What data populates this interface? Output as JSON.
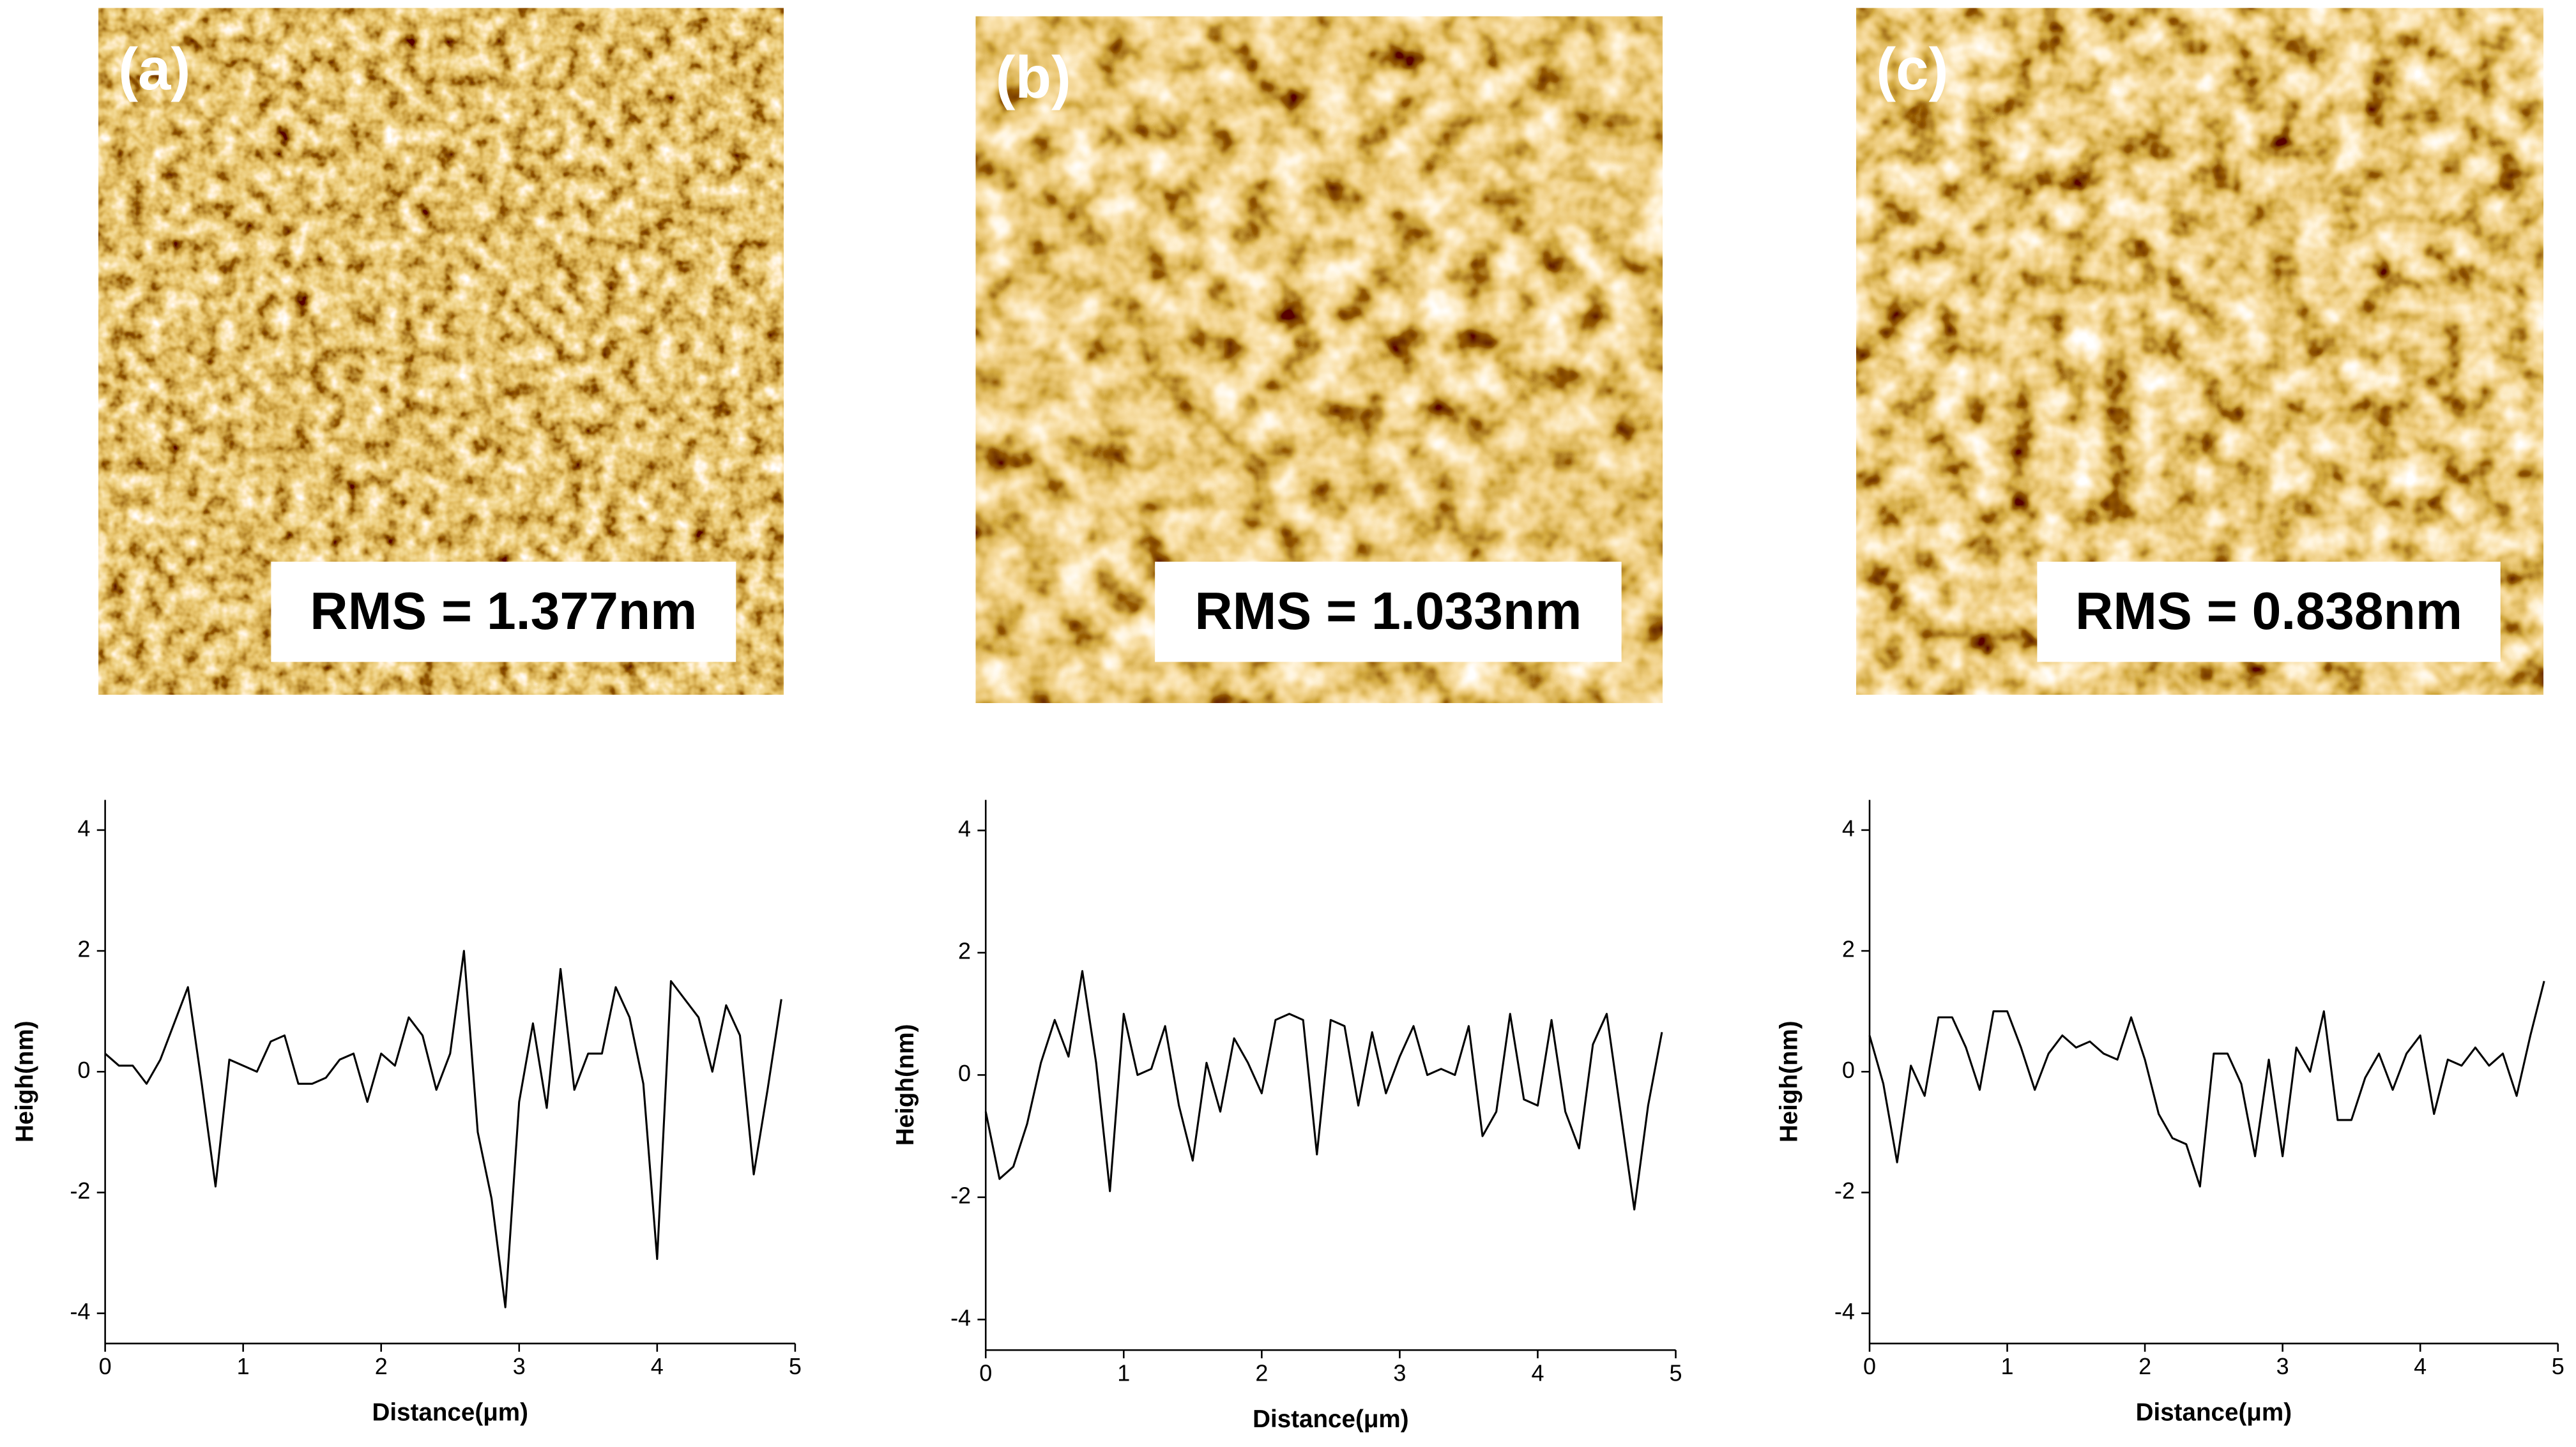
{
  "chart_data": [
    {
      "type": "line",
      "panel_label": "(a)",
      "annotation": "RMS = 1.377nm",
      "x_label": "Distance(μm)",
      "y_label": "Heigh(nm)",
      "color": "#000000",
      "xlim": [
        0,
        5
      ],
      "xticks": [
        0,
        1,
        2,
        3,
        4,
        5
      ],
      "ylim": [
        -4.5,
        4.5
      ],
      "yticks": [
        -4,
        -2,
        0,
        2,
        4
      ],
      "x": [
        0,
        0.1,
        0.2,
        0.3,
        0.4,
        0.5,
        0.6,
        0.7,
        0.8,
        0.9,
        1.0,
        1.1,
        1.2,
        1.3,
        1.4,
        1.5,
        1.6,
        1.7,
        1.8,
        1.9,
        2.0,
        2.1,
        2.2,
        2.3,
        2.4,
        2.5,
        2.6,
        2.7,
        2.8,
        2.9,
        3.0,
        3.1,
        3.2,
        3.3,
        3.4,
        3.5,
        3.6,
        3.7,
        3.8,
        3.9,
        4.0,
        4.1,
        4.2,
        4.3,
        4.4,
        4.5,
        4.6,
        4.7,
        4.8,
        4.9
      ],
      "values": [
        0.3,
        0.1,
        0.1,
        -0.2,
        0.2,
        0.8,
        1.4,
        -0.2,
        -1.9,
        0.2,
        0.1,
        0.0,
        0.5,
        0.6,
        -0.2,
        -0.2,
        -0.1,
        0.2,
        0.3,
        -0.5,
        0.3,
        0.1,
        0.9,
        0.6,
        -0.3,
        0.3,
        2.0,
        -1.0,
        -2.1,
        -3.9,
        -0.5,
        0.8,
        -0.6,
        1.7,
        -0.3,
        0.3,
        0.3,
        1.4,
        0.9,
        -0.2,
        -3.1,
        1.5,
        1.2,
        0.9,
        0.0,
        1.1,
        0.6,
        -1.7,
        -0.3,
        1.2
      ]
    },
    {
      "type": "line",
      "panel_label": "(b)",
      "annotation": "RMS = 1.033nm",
      "x_label": "Distance(μm)",
      "y_label": "Heigh(nm)",
      "color": "#000000",
      "xlim": [
        0,
        5
      ],
      "xticks": [
        0,
        1,
        2,
        3,
        4,
        5
      ],
      "ylim": [
        -4.5,
        4.5
      ],
      "yticks": [
        -4,
        -2,
        0,
        2,
        4
      ],
      "x": [
        0,
        0.1,
        0.2,
        0.3,
        0.4,
        0.5,
        0.6,
        0.7,
        0.8,
        0.9,
        1.0,
        1.1,
        1.2,
        1.3,
        1.4,
        1.5,
        1.6,
        1.7,
        1.8,
        1.9,
        2.0,
        2.1,
        2.2,
        2.3,
        2.4,
        2.5,
        2.6,
        2.7,
        2.8,
        2.9,
        3.0,
        3.1,
        3.2,
        3.3,
        3.4,
        3.5,
        3.6,
        3.7,
        3.8,
        3.9,
        4.0,
        4.1,
        4.2,
        4.3,
        4.4,
        4.5,
        4.6,
        4.7,
        4.8,
        4.9
      ],
      "values": [
        -0.6,
        -1.7,
        -1.5,
        -0.8,
        0.2,
        0.9,
        0.3,
        1.7,
        0.2,
        -1.9,
        1.0,
        0.0,
        0.1,
        0.8,
        -0.5,
        -1.4,
        0.2,
        -0.6,
        0.6,
        0.2,
        -0.3,
        0.9,
        1.0,
        0.9,
        -1.3,
        0.9,
        0.8,
        -0.5,
        0.7,
        -0.3,
        0.3,
        0.8,
        0.0,
        0.1,
        0.0,
        0.8,
        -1.0,
        -0.6,
        1.0,
        -0.4,
        -0.5,
        0.9,
        -0.6,
        -1.2,
        0.5,
        1.0,
        -0.6,
        -2.2,
        -0.5,
        0.7
      ]
    },
    {
      "type": "line",
      "panel_label": "(c)",
      "annotation": "RMS = 0.838nm",
      "x_label": "Distance(μm)",
      "y_label": "Heigh(nm)",
      "color": "#000000",
      "xlim": [
        0,
        5
      ],
      "xticks": [
        0,
        1,
        2,
        3,
        4,
        5
      ],
      "ylim": [
        -4.5,
        4.5
      ],
      "yticks": [
        -4,
        -2,
        0,
        2,
        4
      ],
      "x": [
        0,
        0.1,
        0.2,
        0.3,
        0.4,
        0.5,
        0.6,
        0.7,
        0.8,
        0.9,
        1.0,
        1.1,
        1.2,
        1.3,
        1.4,
        1.5,
        1.6,
        1.7,
        1.8,
        1.9,
        2.0,
        2.1,
        2.2,
        2.3,
        2.4,
        2.5,
        2.6,
        2.7,
        2.8,
        2.9,
        3.0,
        3.1,
        3.2,
        3.3,
        3.4,
        3.5,
        3.6,
        3.7,
        3.8,
        3.9,
        4.0,
        4.1,
        4.2,
        4.3,
        4.4,
        4.5,
        4.6,
        4.7,
        4.8,
        4.9
      ],
      "values": [
        0.6,
        -0.2,
        -1.5,
        0.1,
        -0.4,
        0.9,
        0.9,
        0.4,
        -0.3,
        1.0,
        1.0,
        0.4,
        -0.3,
        0.3,
        0.6,
        0.4,
        0.5,
        0.3,
        0.2,
        0.9,
        0.2,
        -0.7,
        -1.1,
        -1.2,
        -1.9,
        0.3,
        0.3,
        -0.2,
        -1.4,
        0.2,
        -1.4,
        0.4,
        0.0,
        1.0,
        -0.8,
        -0.8,
        -0.1,
        0.3,
        -0.3,
        0.3,
        0.6,
        -0.7,
        0.2,
        0.1,
        0.4,
        0.1,
        0.3,
        -0.4,
        0.6,
        1.5
      ]
    }
  ]
}
